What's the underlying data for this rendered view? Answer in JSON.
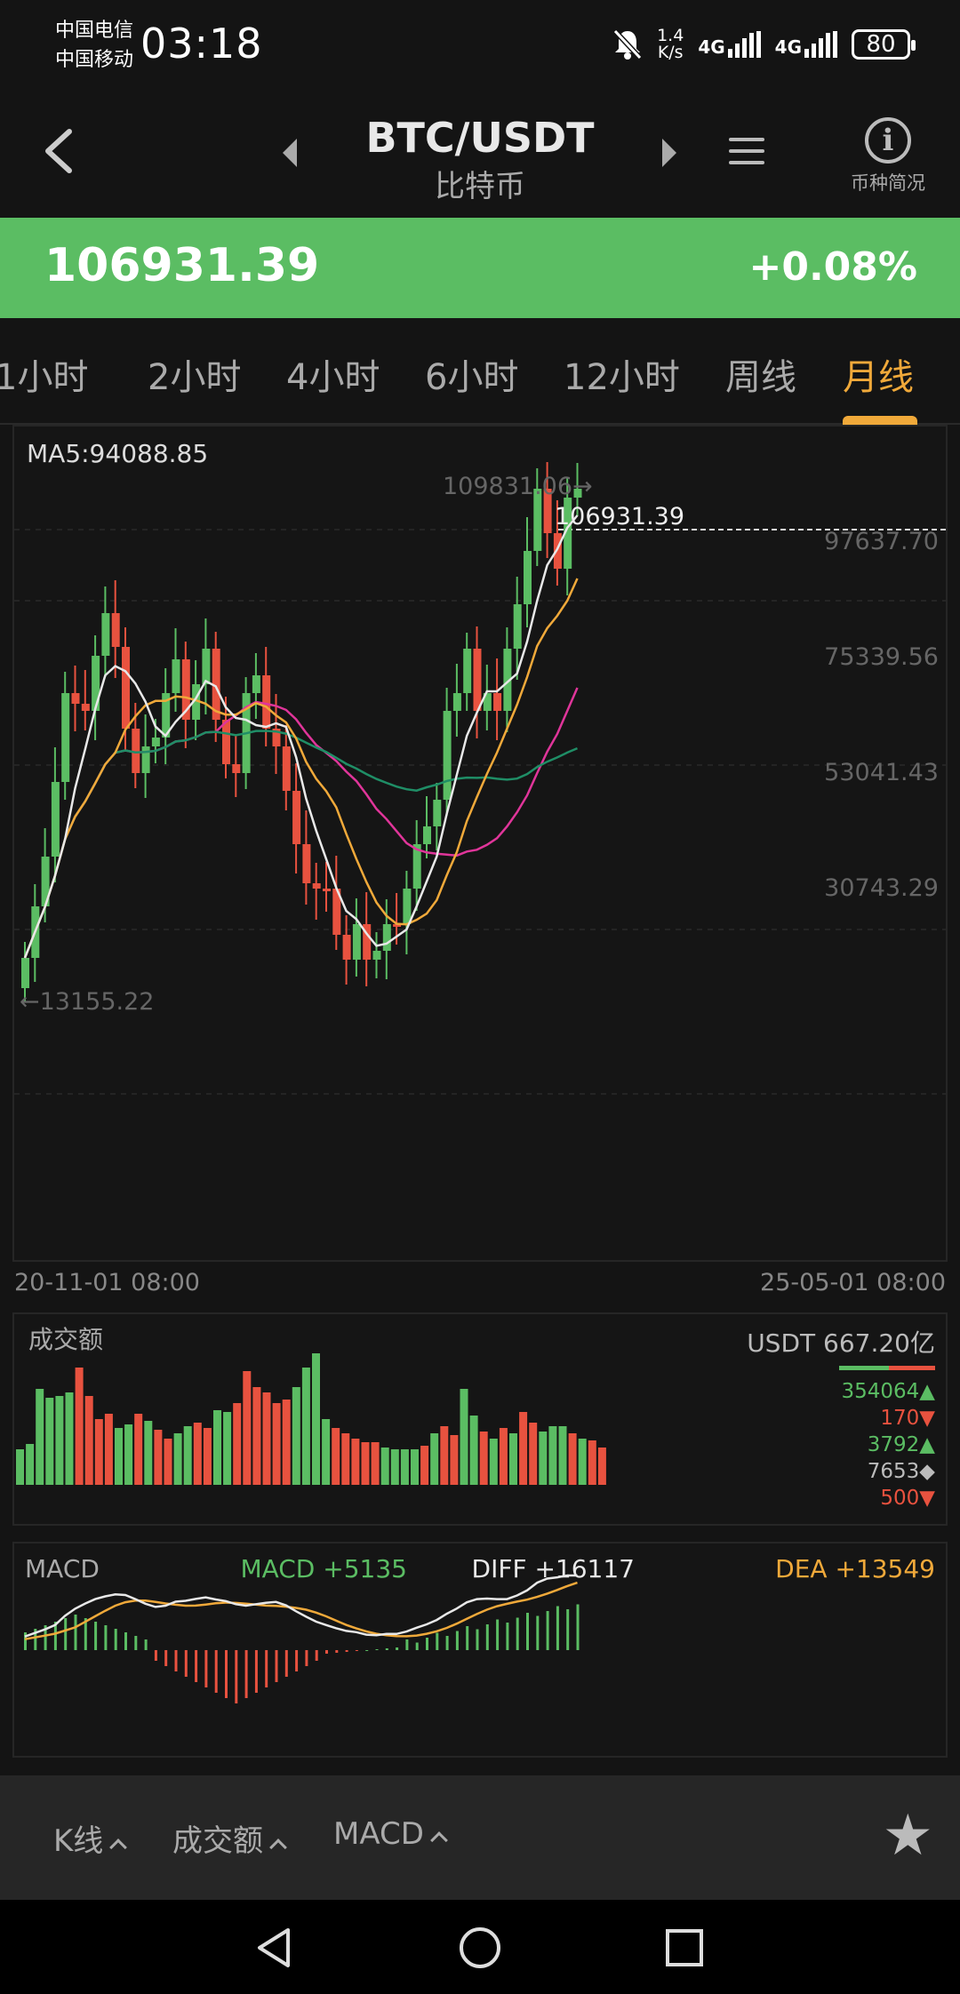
{
  "status_bar": {
    "carrier_1": "中国电信",
    "carrier_2": "中国移动",
    "time": "03:18",
    "speed_value": "1.4",
    "speed_unit": "K/s",
    "network_1": "4G",
    "network_2": "4G",
    "battery": "80"
  },
  "header": {
    "pair": "BTC/USDT",
    "name": "比特币",
    "info_label": "币种简况"
  },
  "price_bar": {
    "price": "106931.39",
    "change": "+0.08%",
    "color": "#5bbd63"
  },
  "tabs": [
    {
      "label": "1小时"
    },
    {
      "label": "2小时"
    },
    {
      "label": "4小时"
    },
    {
      "label": "6小时"
    },
    {
      "label": "12小时"
    },
    {
      "label": "周线"
    },
    {
      "label": "月线",
      "active": true
    }
  ],
  "kline": {
    "ma_label": "MA5:94088.85",
    "current_price": "106931.39",
    "high_label": "109831.06→",
    "low_label": "←13155.22",
    "price_ticks": [
      "97637.70",
      "75339.56",
      "53041.43",
      "30743.29"
    ],
    "start_time": "20-11-01 08:00",
    "end_time": "25-05-01 08:00",
    "up_color": "#5bbd63",
    "down_color": "#e8523f"
  },
  "volume": {
    "title": "成交额",
    "total": "USDT 667.20亿",
    "stats": [
      {
        "value": "354064▲",
        "color": "#5bbd63"
      },
      {
        "value": "170▼",
        "color": "#e8523f"
      },
      {
        "value": "3792▲",
        "color": "#5bbd63"
      },
      {
        "value": "7653◆",
        "color": "#bbbbbb"
      },
      {
        "value": "500▼",
        "color": "#e8523f"
      }
    ]
  },
  "macd": {
    "title": "MACD",
    "macd_value": "MACD +5135",
    "diff_value": "DIFF +16117",
    "dea_value": "DEA +13549"
  },
  "toolbar": {
    "kline_label": "K线",
    "volume_label": "成交额",
    "macd_label": "MACD"
  }
}
